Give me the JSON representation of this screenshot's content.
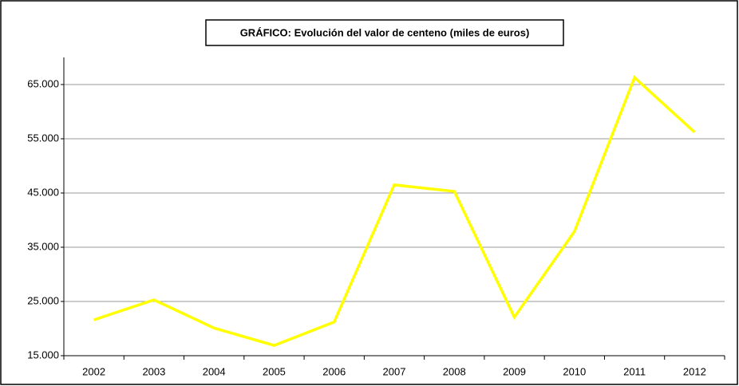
{
  "chart_data": {
    "type": "line",
    "title": "GRÁFICO: Evolución del valor de centeno (miles de euros)",
    "categories": [
      "2002",
      "2003",
      "2004",
      "2005",
      "2006",
      "2007",
      "2008",
      "2009",
      "2010",
      "2011",
      "2012"
    ],
    "values": [
      21600,
      25300,
      20100,
      16900,
      21200,
      46500,
      45300,
      22100,
      37900,
      66300,
      56200
    ],
    "color": "#ffff00",
    "ylim": [
      15000,
      70000
    ],
    "yticks": [
      {
        "value": 15000,
        "label": "15.000"
      },
      {
        "value": 25000,
        "label": "25.000"
      },
      {
        "value": 35000,
        "label": "35.000"
      },
      {
        "value": 45000,
        "label": "45.000"
      },
      {
        "value": 55000,
        "label": "55.000"
      },
      {
        "value": 65000,
        "label": "65.000"
      }
    ],
    "grid": true
  }
}
